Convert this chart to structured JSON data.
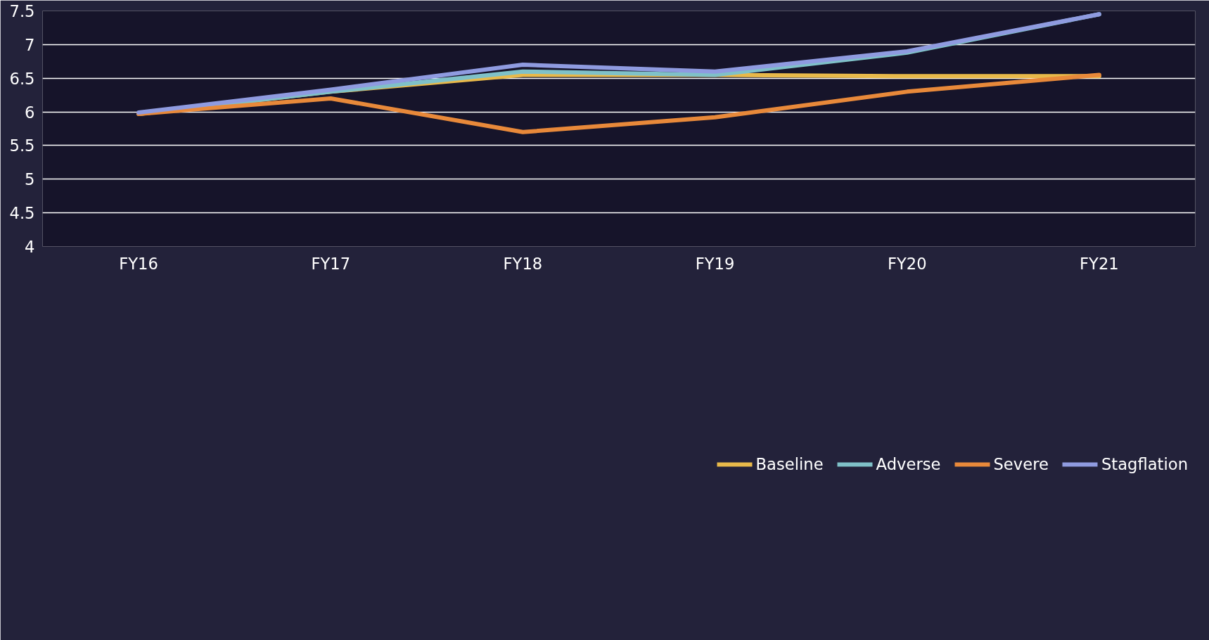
{
  "chart_data": {
    "type": "line",
    "categories": [
      "FY16",
      "FY17",
      "FY18",
      "FY19",
      "FY20",
      "FY21"
    ],
    "series": [
      {
        "name": "Baseline",
        "color": "#e8b94a",
        "values": [
          5.97,
          6.3,
          6.55,
          6.55,
          6.53,
          6.53
        ]
      },
      {
        "name": "Adverse",
        "color": "#7fc1c8",
        "values": [
          5.97,
          6.3,
          6.6,
          6.55,
          6.88,
          7.45
        ]
      },
      {
        "name": "Severe",
        "color": "#e8893a",
        "values": [
          5.97,
          6.2,
          5.7,
          5.92,
          6.3,
          6.55
        ]
      },
      {
        "name": "Stagflation",
        "color": "#8f9be0",
        "values": [
          5.99,
          6.33,
          6.7,
          6.6,
          6.9,
          7.45
        ]
      }
    ],
    "ylim": [
      4,
      7.5
    ],
    "yticks": [
      4,
      4.5,
      5,
      5.5,
      6,
      6.5,
      7,
      7.5
    ],
    "grid": "y",
    "legend": "bottom",
    "marker": "none",
    "line_style": "solid"
  }
}
